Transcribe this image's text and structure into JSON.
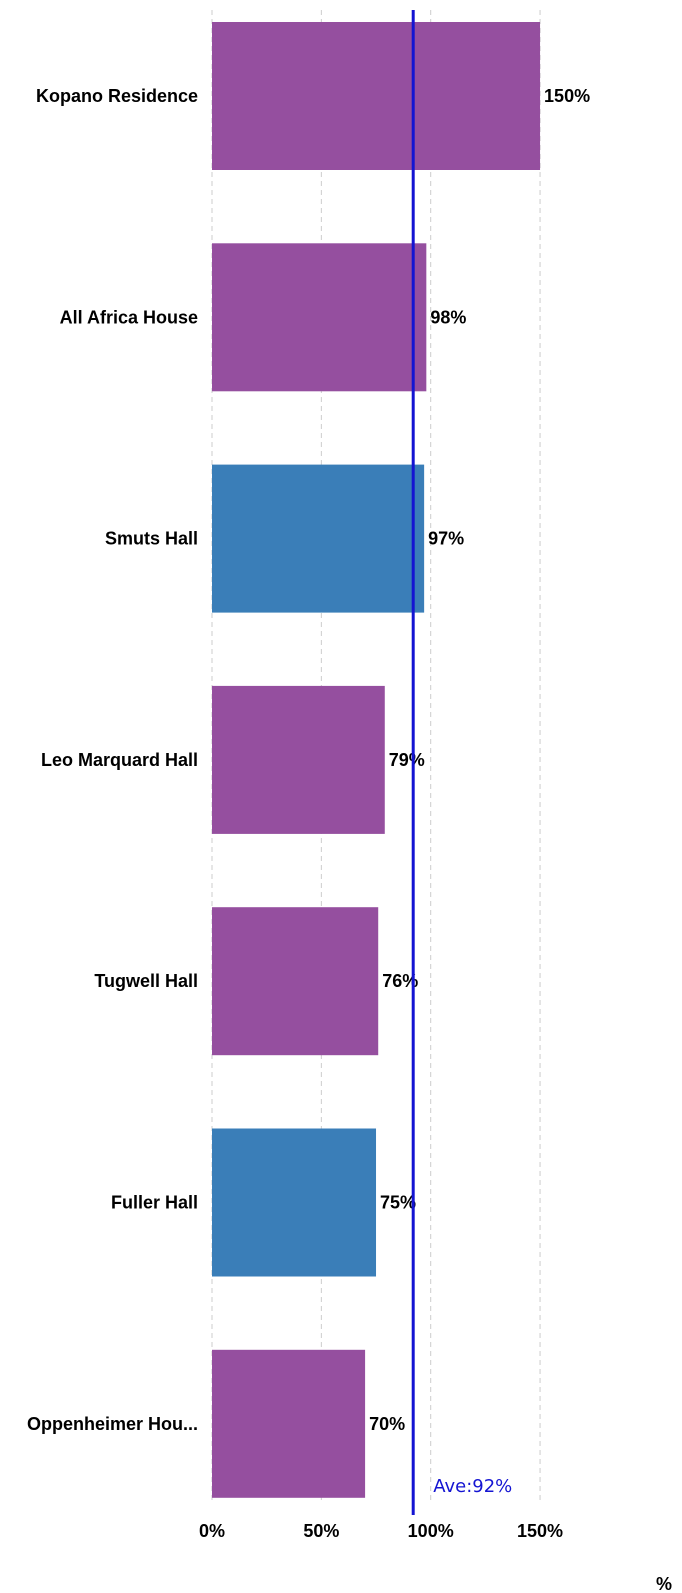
{
  "chart_data": {
    "type": "bar",
    "orientation": "horizontal",
    "categories": [
      "Kopano Residence",
      "All Africa House",
      "Smuts Hall",
      "Leo Marquard Hall",
      "Tugwell Hall",
      "Fuller Hall",
      "Oppenheimer Hou..."
    ],
    "values": [
      150,
      98,
      97,
      79,
      76,
      75,
      70
    ],
    "value_labels": [
      "150%",
      "98%",
      "97%",
      "79%",
      "76%",
      "75%",
      "70%"
    ],
    "bar_colors": [
      "#954f9f",
      "#954f9f",
      "#3a7eb8",
      "#954f9f",
      "#954f9f",
      "#3a7eb8",
      "#954f9f"
    ],
    "xticks": [
      0,
      50,
      100,
      150
    ],
    "xtick_labels": [
      "0%",
      "50%",
      "100%",
      "150%"
    ],
    "xlim": [
      0,
      150
    ],
    "xlabel": "%",
    "grid": true,
    "grid_style": "dashed",
    "average": {
      "value": 92,
      "label": "Ave:92%",
      "color": "#1414d2"
    }
  }
}
